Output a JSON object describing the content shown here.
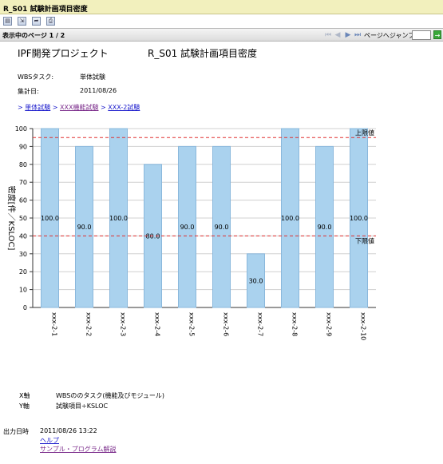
{
  "window": {
    "title": "R_S01  試験計画項目密度"
  },
  "toolbar": {
    "icons": [
      "save-icon",
      "export-icon",
      "forward-icon",
      "print-icon"
    ]
  },
  "nav": {
    "page_info": "表示中のページ  1  /  2",
    "jump_label": "ページへジャンプ:",
    "jump_value": "",
    "go_label": "→"
  },
  "report": {
    "project": "IPF開発プロジェクト",
    "title": "R_S01   試験計画項目密度",
    "wbs_label": "WBSタスク:",
    "wbs_value": "単体試験",
    "date_label": "集計日:",
    "date_value": "2011/08/26",
    "breadcrumb": {
      "prefix": ">",
      "items": [
        "単体試験",
        "XXX機能試験",
        "XXX-2試験"
      ],
      "separator": ">"
    },
    "x_axis_label": "X軸",
    "x_axis_desc": "WBSののタスク(機能及びモジュール)",
    "y_axis_label": "Y軸",
    "y_axis_desc": "試験項目÷KSLOC",
    "output_label": "出力日時",
    "output_value": "2011/08/26 13:22",
    "help_link": "ヘルプ",
    "sample_link": "サンプル・プログラム解説"
  },
  "chart_data": {
    "type": "bar",
    "categories": [
      "xxx-2-1",
      "xxx-2-2",
      "xxx-2-3",
      "xxx-2-4",
      "xxx-2-5",
      "xxx-2-6",
      "xxx-2-7",
      "xxx-2-8",
      "xxx-2-9",
      "xxx-2-10"
    ],
    "values": [
      100,
      90,
      100,
      80,
      90,
      90,
      30,
      100,
      90,
      100
    ],
    "data_labels": [
      "100.0",
      "90.0",
      "100.0",
      "80.0",
      "90.0",
      "90.0",
      "30.0",
      "100.0",
      "90.0",
      "100.0"
    ],
    "ylabel": "密度[件／KSLOC]",
    "ylim": [
      0,
      100
    ],
    "yticks": [
      0,
      10,
      20,
      30,
      40,
      50,
      60,
      70,
      80,
      90,
      100
    ],
    "grid": true,
    "reference_lines": [
      {
        "label": "上限値",
        "value": 95
      },
      {
        "label": "下限値",
        "value": 40
      }
    ],
    "colors": {
      "bar": "#aad2ee",
      "bar_edge": "#8ab8dc",
      "ref_line": "#e03030",
      "grid": "#d0d0d0"
    }
  }
}
